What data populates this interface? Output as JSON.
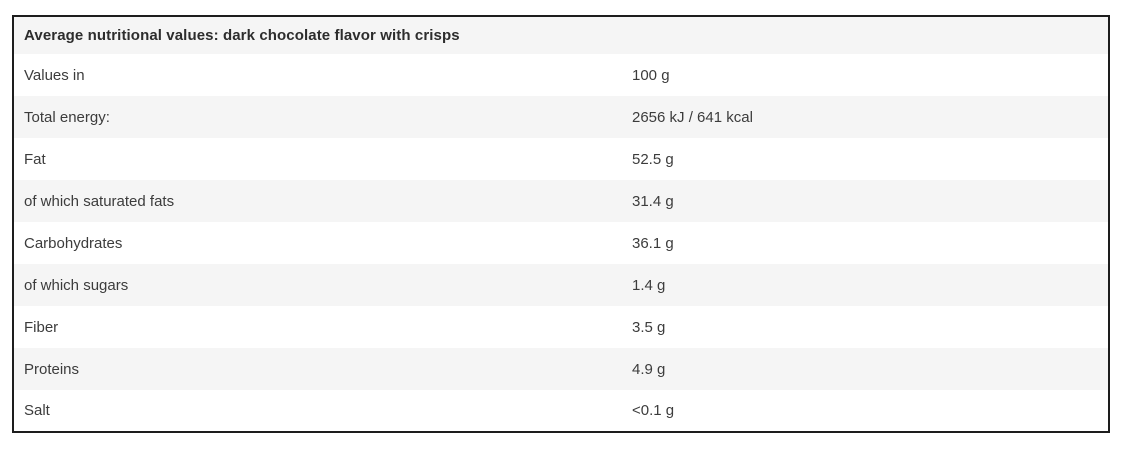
{
  "table": {
    "title": "Average nutritional values: dark chocolate flavor with crisps",
    "columns": [
      "label",
      "value"
    ],
    "rows": [
      {
        "label": "Values in",
        "value": "100 g"
      },
      {
        "label": "Total energy:",
        "value": "2656 kJ / 641 kcal"
      },
      {
        "label": "Fat",
        "value": "52.5 g"
      },
      {
        "label": "of which saturated fats",
        "value": "31.4 g"
      },
      {
        "label": "Carbohydrates",
        "value": "36.1 g"
      },
      {
        "label": "of which sugars",
        "value": "1.4 g"
      },
      {
        "label": "Fiber",
        "value": "3.5 g"
      },
      {
        "label": "Proteins",
        "value": "4.9 g"
      },
      {
        "label": "Salt",
        "value": "<0.1 g"
      }
    ],
    "colors": {
      "stripe_background": "#f5f5f5",
      "row_background": "#ffffff",
      "outer_border": "#1d1d1d",
      "body_text": "#3c3c3c",
      "title_text": "#2d2d2d"
    }
  }
}
